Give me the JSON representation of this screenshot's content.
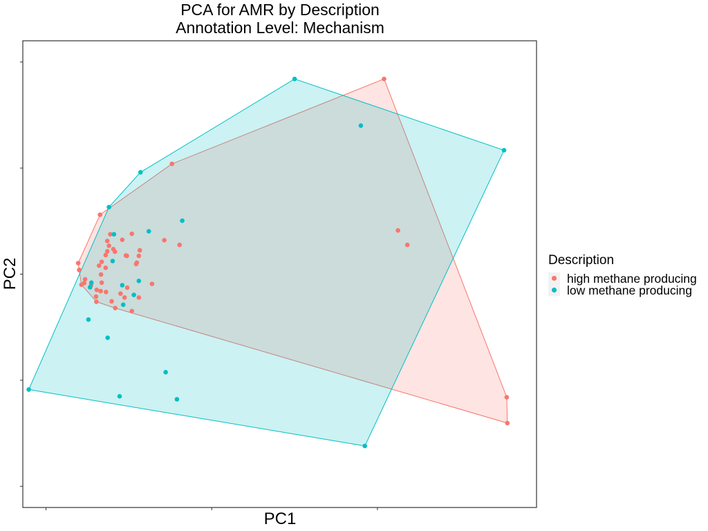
{
  "chart_data": {
    "type": "scatter",
    "title": "PCA for AMR by Description",
    "subtitle": "Annotation Level: Mechanism",
    "xlabel": "PC1",
    "ylabel": "PC2",
    "xlim": [
      -0.07,
      1.48
    ],
    "ylim": [
      -0.05,
      1.05
    ],
    "x_ticks": [
      0,
      0.5,
      1.0
    ],
    "y_ticks": [
      0,
      0.25,
      0.5,
      0.75,
      1.0
    ],
    "grid": false,
    "legend": {
      "title": "Description",
      "placement": "right"
    },
    "series": [
      {
        "name": "high methane producing",
        "color": "#F8766D",
        "hull": true,
        "points": [
          [
            1.02,
            0.96
          ],
          [
            0.38,
            0.76
          ],
          [
            0.163,
            0.64
          ],
          [
            0.283,
            0.556
          ],
          [
            0.23,
            0.581
          ],
          [
            0.194,
            0.594
          ],
          [
            0.259,
            0.595
          ],
          [
            0.357,
            0.58
          ],
          [
            0.403,
            0.569
          ],
          [
            0.28,
            0.543
          ],
          [
            0.274,
            0.527
          ],
          [
            0.241,
            0.544
          ],
          [
            0.185,
            0.578
          ],
          [
            0.32,
            0.477
          ],
          [
            0.244,
            0.543
          ],
          [
            0.168,
            0.529
          ],
          [
            0.18,
            0.515
          ],
          [
            0.166,
            0.499
          ],
          [
            0.168,
            0.48
          ],
          [
            0.237,
            0.445
          ],
          [
            0.245,
            0.468
          ],
          [
            0.165,
            0.46
          ],
          [
            0.198,
            0.436
          ],
          [
            0.28,
            0.445
          ],
          [
            0.259,
            0.413
          ],
          [
            0.16,
            0.52
          ],
          [
            0.136,
            0.474
          ],
          [
            0.153,
            0.463
          ],
          [
            0.151,
            0.447
          ],
          [
            0.118,
            0.488
          ],
          [
            0.107,
            0.475
          ],
          [
            0.115,
            0.479
          ],
          [
            0.181,
            0.458
          ],
          [
            0.225,
            0.454
          ],
          [
            0.272,
            0.524
          ],
          [
            0.208,
            0.553
          ],
          [
            0.203,
            0.559
          ],
          [
            0.19,
            0.567
          ],
          [
            0.185,
            0.554
          ],
          [
            0.18,
            0.545
          ],
          [
            1.09,
            0.569
          ],
          [
            1.062,
            0.603
          ],
          [
            1.392,
            0.149
          ],
          [
            1.39,
            0.21
          ],
          [
            0.1,
            0.51
          ],
          [
            0.097,
            0.526
          ],
          [
            0.152,
            0.435
          ],
          [
            0.209,
            0.42
          ]
        ]
      },
      {
        "name": "low methane producing",
        "color": "#00BFC4",
        "hull": true,
        "points": [
          [
            0.75,
            0.96
          ],
          [
            0.95,
            0.85
          ],
          [
            0.285,
            0.74
          ],
          [
            0.19,
            0.658
          ],
          [
            0.411,
            0.626
          ],
          [
            0.31,
            0.601
          ],
          [
            0.205,
            0.594
          ],
          [
            0.201,
            0.531
          ],
          [
            0.28,
            0.484
          ],
          [
            0.265,
            0.451
          ],
          [
            0.133,
            0.469
          ],
          [
            0.23,
            0.474
          ],
          [
            0.233,
            0.428
          ],
          [
            0.128,
            0.393
          ],
          [
            0.186,
            0.35
          ],
          [
            0.361,
            0.269
          ],
          [
            0.395,
            0.205
          ],
          [
            0.222,
            0.212
          ],
          [
            -0.052,
            0.228
          ],
          [
            1.382,
            0.792
          ],
          [
            0.962,
            0.095
          ],
          [
            0.137,
            0.48
          ]
        ]
      }
    ]
  }
}
